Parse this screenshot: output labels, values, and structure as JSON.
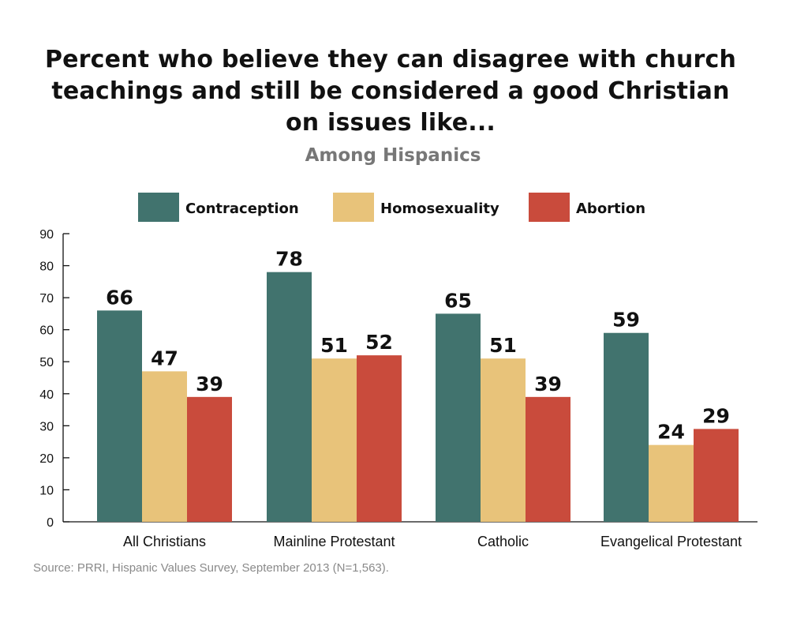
{
  "chart_data": {
    "type": "bar",
    "title_lines": [
      "Percent who believe they can disagree with church",
      "teachings and still be considered a good Christian",
      "on issues like..."
    ],
    "subtitle": "Among Hispanics",
    "categories": [
      "All Christians",
      "Mainline Protestant",
      "Catholic",
      "Evangelical Protestant"
    ],
    "series": [
      {
        "name": "Contraception",
        "color": "#41736e",
        "values": [
          66,
          78,
          65,
          59
        ]
      },
      {
        "name": "Homosexuality",
        "color": "#e8c37a",
        "values": [
          47,
          51,
          51,
          24
        ]
      },
      {
        "name": "Abortion",
        "color": "#c94b3c",
        "values": [
          39,
          52,
          39,
          29
        ]
      }
    ],
    "ylim": [
      0,
      90
    ],
    "yticks": [
      "0",
      "10",
      "20",
      "30",
      "40",
      "50",
      "60",
      "70",
      "80",
      "90"
    ],
    "legend_position": "top",
    "grid": false,
    "source": "Source: PRRI, Hispanic Values Survey, September 2013 (N=1,563)."
  }
}
